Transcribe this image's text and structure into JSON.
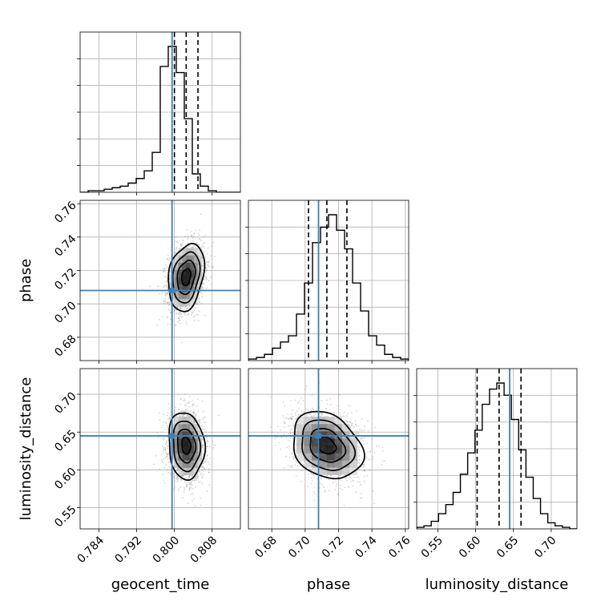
{
  "colors": {
    "truth": "#3d81b8",
    "line": "#000000",
    "grid": "#b0b0b0",
    "scatter": "#888888"
  },
  "chart_data": {
    "type": "corner",
    "parameters": [
      {
        "name": "geocent_time",
        "label": "geocent_time",
        "range": [
          0.78,
          0.814
        ],
        "ticks": [
          "0.784",
          "0.792",
          "0.800",
          "0.808"
        ],
        "tick_values": [
          0.784,
          0.792,
          0.8,
          0.808
        ],
        "truth": 0.7995,
        "quantiles": [
          0.8,
          0.8025,
          0.805
        ],
        "histogram": {
          "edges": [
            0.78,
            0.814
          ],
          "counts": [
            0,
            1,
            1,
            2,
            3,
            4,
            6,
            9,
            14,
            26,
            82,
            95,
            78,
            48,
            12,
            4,
            1,
            0,
            0,
            0
          ]
        }
      },
      {
        "name": "phase",
        "label": "phase",
        "range": [
          0.666,
          0.762
        ],
        "ticks": [
          "0.68",
          "0.70",
          "0.72",
          "0.74",
          "0.76"
        ],
        "tick_values": [
          0.68,
          0.7,
          0.72,
          0.74,
          0.76
        ],
        "truth": 0.708,
        "quantiles": [
          0.702,
          0.713,
          0.725
        ],
        "histogram": {
          "edges": [
            0.666,
            0.762
          ],
          "counts": [
            1,
            2,
            4,
            8,
            12,
            16,
            30,
            50,
            76,
            86,
            94,
            84,
            72,
            50,
            32,
            16,
            10,
            4,
            2,
            1
          ]
        }
      },
      {
        "name": "luminosity_distance",
        "label": "luminosity_distance",
        "range": [
          0.522,
          0.734
        ],
        "ticks": [
          "0.55",
          "0.60",
          "0.65",
          "0.70"
        ],
        "tick_values": [
          0.55,
          0.6,
          0.65,
          0.7
        ],
        "truth": 0.645,
        "quantiles": [
          0.602,
          0.631,
          0.66
        ],
        "histogram": {
          "edges": [
            0.522,
            0.734
          ],
          "counts": [
            1,
            2,
            5,
            10,
            16,
            24,
            36,
            50,
            65,
            82,
            92,
            96,
            88,
            72,
            52,
            34,
            20,
            10,
            4,
            2,
            1,
            0
          ]
        }
      }
    ],
    "pairs": [
      {
        "x": "geocent_time",
        "y": "phase",
        "mean": [
          0.8025,
          0.716
        ],
        "sd": [
          0.0019,
          0.0101
        ],
        "rho": 0.25
      },
      {
        "x": "geocent_time",
        "y": "luminosity_distance",
        "mean": [
          0.8025,
          0.632
        ],
        "sd": [
          0.0019,
          0.0222
        ],
        "rho": -0.1
      },
      {
        "x": "phase",
        "y": "luminosity_distance",
        "mean": [
          0.713,
          0.632
        ],
        "sd": [
          0.0105,
          0.0222
        ],
        "rho": -0.25
      }
    ],
    "xlabels": [
      "geocent_time",
      "phase",
      "luminosity_distance"
    ],
    "ylabels": [
      "",
      "phase",
      "luminosity_distance"
    ],
    "grid": true
  }
}
